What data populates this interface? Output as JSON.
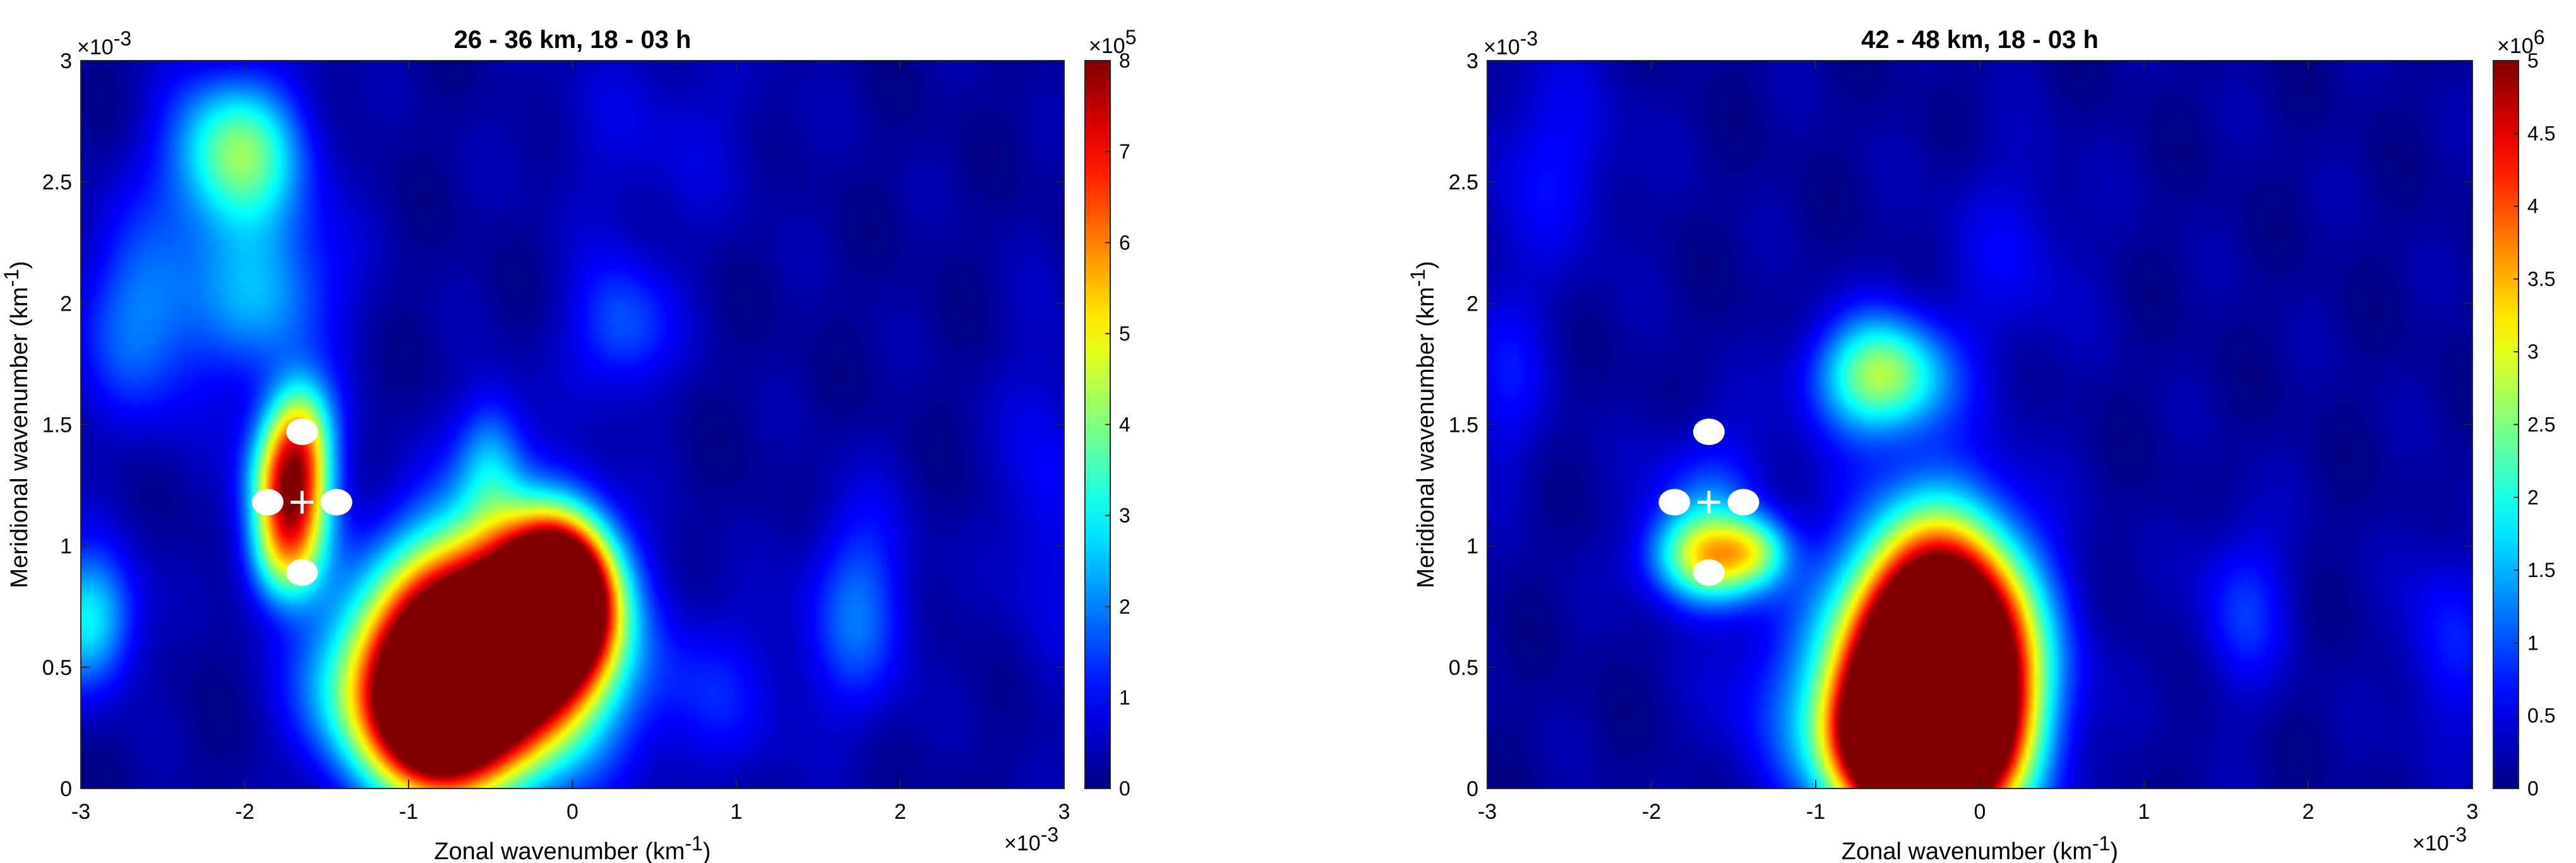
{
  "chart_data": [
    {
      "type": "heatmap",
      "title": "26 - 36 km, 18 - 03 h",
      "xlabel": "Zonal wavenumber (km",
      "xlabel_sup": "-1",
      "xlabel_end": ")",
      "ylabel": "Meridional wavenumber (km",
      "ylabel_sup": "-1",
      "ylabel_end": ")",
      "xlim": [
        -3,
        3
      ],
      "ylim": [
        0,
        3
      ],
      "xticks": [
        -3,
        -2,
        -1,
        0,
        1,
        2,
        3
      ],
      "yticks": [
        0,
        0.5,
        1,
        1.5,
        2,
        2.5,
        3
      ],
      "xtick_labels": [
        "-3",
        "-2",
        "-1",
        "0",
        "1",
        "2",
        "3"
      ],
      "ytick_labels": [
        "0",
        "0.5",
        "1",
        "1.5",
        "2",
        "2.5",
        "3"
      ],
      "x_exponent": "-3",
      "y_exponent": "-3",
      "axis_multiplier": "×10",
      "colorbar": {
        "range": [
          0,
          8
        ],
        "ticks": [
          0,
          1,
          2,
          3,
          4,
          5,
          6,
          7,
          8
        ],
        "tick_labels": [
          "0",
          "1",
          "2",
          "3",
          "4",
          "5",
          "6",
          "7",
          "8"
        ],
        "multiplier": "×10",
        "exponent": "5",
        "colormap": "jet"
      },
      "features": [
        {
          "x": -0.55,
          "y": 0.55,
          "amp": 14,
          "sx": 0.42,
          "sy": 0.32
        },
        {
          "x": -0.08,
          "y": 0.78,
          "amp": 12,
          "sx": 0.22,
          "sy": 0.22
        },
        {
          "x": -0.85,
          "y": 0.3,
          "amp": 8,
          "sx": 0.25,
          "sy": 0.22
        },
        {
          "x": -1.72,
          "y": 1.25,
          "amp": 7.2,
          "sx": 0.16,
          "sy": 0.2
        },
        {
          "x": -1.65,
          "y": 1.5,
          "amp": 2.5,
          "sx": 0.14,
          "sy": 0.15
        },
        {
          "x": -1.75,
          "y": 0.95,
          "amp": 3,
          "sx": 0.16,
          "sy": 0.15
        },
        {
          "x": -2.05,
          "y": 2.62,
          "amp": 3.8,
          "sx": 0.28,
          "sy": 0.22
        },
        {
          "x": -1.85,
          "y": 2.05,
          "amp": 2.0,
          "sx": 0.3,
          "sy": 0.25
        },
        {
          "x": -2.6,
          "y": 1.95,
          "amp": 1.8,
          "sx": 0.3,
          "sy": 0.3
        },
        {
          "x": -2.95,
          "y": 0.7,
          "amp": 2.8,
          "sx": 0.2,
          "sy": 0.2
        },
        {
          "x": -1.35,
          "y": 0.4,
          "amp": 2.0,
          "sx": 0.25,
          "sy": 0.25
        },
        {
          "x": -0.5,
          "y": 1.35,
          "amp": 2.0,
          "sx": 0.15,
          "sy": 0.2
        },
        {
          "x": 0.3,
          "y": 1.9,
          "amp": 1.5,
          "sx": 0.22,
          "sy": 0.2
        },
        {
          "x": 1.75,
          "y": 0.75,
          "amp": 1.6,
          "sx": 0.22,
          "sy": 0.3
        },
        {
          "x": 0.8,
          "y": 0.4,
          "amp": 0.9,
          "sx": 0.4,
          "sy": 0.25
        },
        {
          "x": 2.9,
          "y": 1.2,
          "amp": 0.8,
          "sx": 0.2,
          "sy": 0.5
        },
        {
          "x": 0.5,
          "y": 2.7,
          "amp": 0.5,
          "sx": 0.5,
          "sy": 0.3
        }
      ],
      "markers": [
        {
          "kind": "dot",
          "x": -1.65,
          "y": 1.47
        },
        {
          "kind": "dot",
          "x": -1.86,
          "y": 1.18
        },
        {
          "kind": "dot",
          "x": -1.44,
          "y": 1.18
        },
        {
          "kind": "dot",
          "x": -1.65,
          "y": 0.89
        },
        {
          "kind": "plus",
          "x": -1.65,
          "y": 1.18
        }
      ]
    },
    {
      "type": "heatmap",
      "title": "42 - 48 km, 18 - 03 h",
      "xlabel": "Zonal wavenumber (km",
      "xlabel_sup": "-1",
      "xlabel_end": ")",
      "ylabel": "Meridional wavenumber (km",
      "ylabel_sup": "-1",
      "ylabel_end": ")",
      "xlim": [
        -3,
        3
      ],
      "ylim": [
        0,
        3
      ],
      "xticks": [
        -3,
        -2,
        -1,
        0,
        1,
        2,
        3
      ],
      "yticks": [
        0,
        0.5,
        1,
        1.5,
        2,
        2.5,
        3
      ],
      "xtick_labels": [
        "-3",
        "-2",
        "-1",
        "0",
        "1",
        "2",
        "3"
      ],
      "ytick_labels": [
        "0",
        "0.5",
        "1",
        "1.5",
        "2",
        "2.5",
        "3"
      ],
      "x_exponent": "-3",
      "y_exponent": "-3",
      "axis_multiplier": "×10",
      "colorbar": {
        "range": [
          0,
          5
        ],
        "ticks": [
          0,
          0.5,
          1,
          1.5,
          2,
          2.5,
          3,
          3.5,
          4,
          4.5,
          5
        ],
        "tick_labels": [
          "0",
          "0.5",
          "1",
          "1.5",
          "2",
          "2.5",
          "3",
          "3.5",
          "4",
          "4.5",
          "5"
        ],
        "multiplier": "×10",
        "exponent": "6",
        "colormap": "jet"
      },
      "features": [
        {
          "x": -0.25,
          "y": 0.45,
          "amp": 12,
          "sx": 0.35,
          "sy": 0.38
        },
        {
          "x": -0.45,
          "y": 0.2,
          "amp": 6,
          "sx": 0.3,
          "sy": 0.2
        },
        {
          "x": -1.65,
          "y": 0.95,
          "amp": 2.8,
          "sx": 0.24,
          "sy": 0.13
        },
        {
          "x": -1.35,
          "y": 0.98,
          "amp": 1.2,
          "sx": 0.15,
          "sy": 0.1
        },
        {
          "x": -0.6,
          "y": 1.7,
          "amp": 2.6,
          "sx": 0.28,
          "sy": 0.17
        },
        {
          "x": -1.65,
          "y": 1.2,
          "amp": 0.8,
          "sx": 0.25,
          "sy": 0.2
        },
        {
          "x": -2.6,
          "y": 2.6,
          "amp": 0.5,
          "sx": 0.3,
          "sy": 0.3
        },
        {
          "x": 1.6,
          "y": 0.75,
          "amp": 0.7,
          "sx": 0.2,
          "sy": 0.25
        },
        {
          "x": 0.2,
          "y": 2.2,
          "amp": 0.4,
          "sx": 0.3,
          "sy": 0.3
        },
        {
          "x": 2.85,
          "y": 0.6,
          "amp": 0.6,
          "sx": 0.2,
          "sy": 0.3
        },
        {
          "x": -2.9,
          "y": 1.7,
          "amp": 0.5,
          "sx": 0.2,
          "sy": 0.3
        },
        {
          "x": -1.2,
          "y": 0.4,
          "amp": 0.6,
          "sx": 0.3,
          "sy": 0.3
        }
      ],
      "markers": [
        {
          "kind": "dot",
          "x": -1.65,
          "y": 1.47
        },
        {
          "kind": "dot",
          "x": -1.86,
          "y": 1.18
        },
        {
          "kind": "dot",
          "x": -1.44,
          "y": 1.18
        },
        {
          "kind": "dot",
          "x": -1.65,
          "y": 0.89
        },
        {
          "kind": "plus",
          "x": -1.65,
          "y": 1.18
        }
      ]
    }
  ]
}
